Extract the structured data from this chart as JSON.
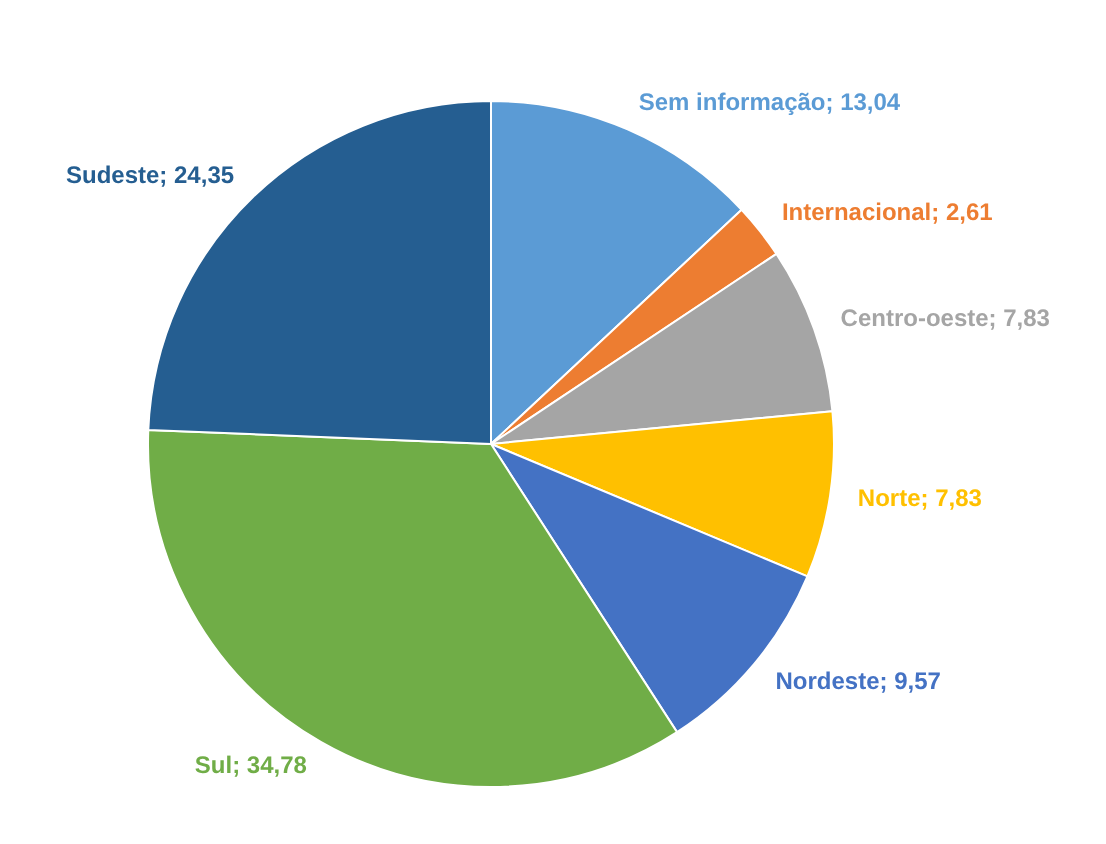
{
  "chart_data": {
    "type": "pie",
    "categories": [
      "Sem informação",
      "Internacional",
      "Centro-oeste",
      "Norte",
      "Nordeste",
      "Sul",
      "Sudeste"
    ],
    "values": [
      13.04,
      2.61,
      7.83,
      7.83,
      9.57,
      34.78,
      24.35
    ],
    "value_labels": [
      "13,04",
      "2,61",
      "7,83",
      "7,83",
      "9,57",
      "34,78",
      "24,35"
    ],
    "colors": [
      "#5b9bd5",
      "#ed7d31",
      "#a5a5a5",
      "#ffc000",
      "#4472c4",
      "#70ad47",
      "#255e91"
    ],
    "legend": false
  }
}
